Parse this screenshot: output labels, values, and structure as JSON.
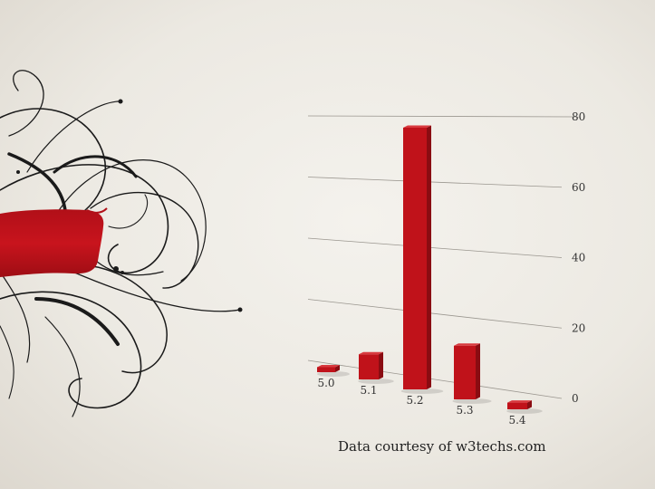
{
  "credit": "Data courtesy of w3techs.com",
  "colors": {
    "bar": "#c0121a",
    "bar_dark": "#8a0c12",
    "bar_light": "#d83a3f",
    "ink": "#1a1a1a"
  },
  "decoration": [
    "swirl-ornament",
    "red-paint-stroke"
  ],
  "chart_data": {
    "type": "bar",
    "categories": [
      "5.0",
      "5.1",
      "5.2",
      "5.3",
      "5.4"
    ],
    "values": [
      1.5,
      7.5,
      78,
      16,
      2
    ],
    "ylim": [
      0,
      80
    ],
    "yticks": [
      0,
      20,
      40,
      60,
      80
    ],
    "grid": true,
    "title": "",
    "xlabel": "",
    "ylabel": ""
  }
}
